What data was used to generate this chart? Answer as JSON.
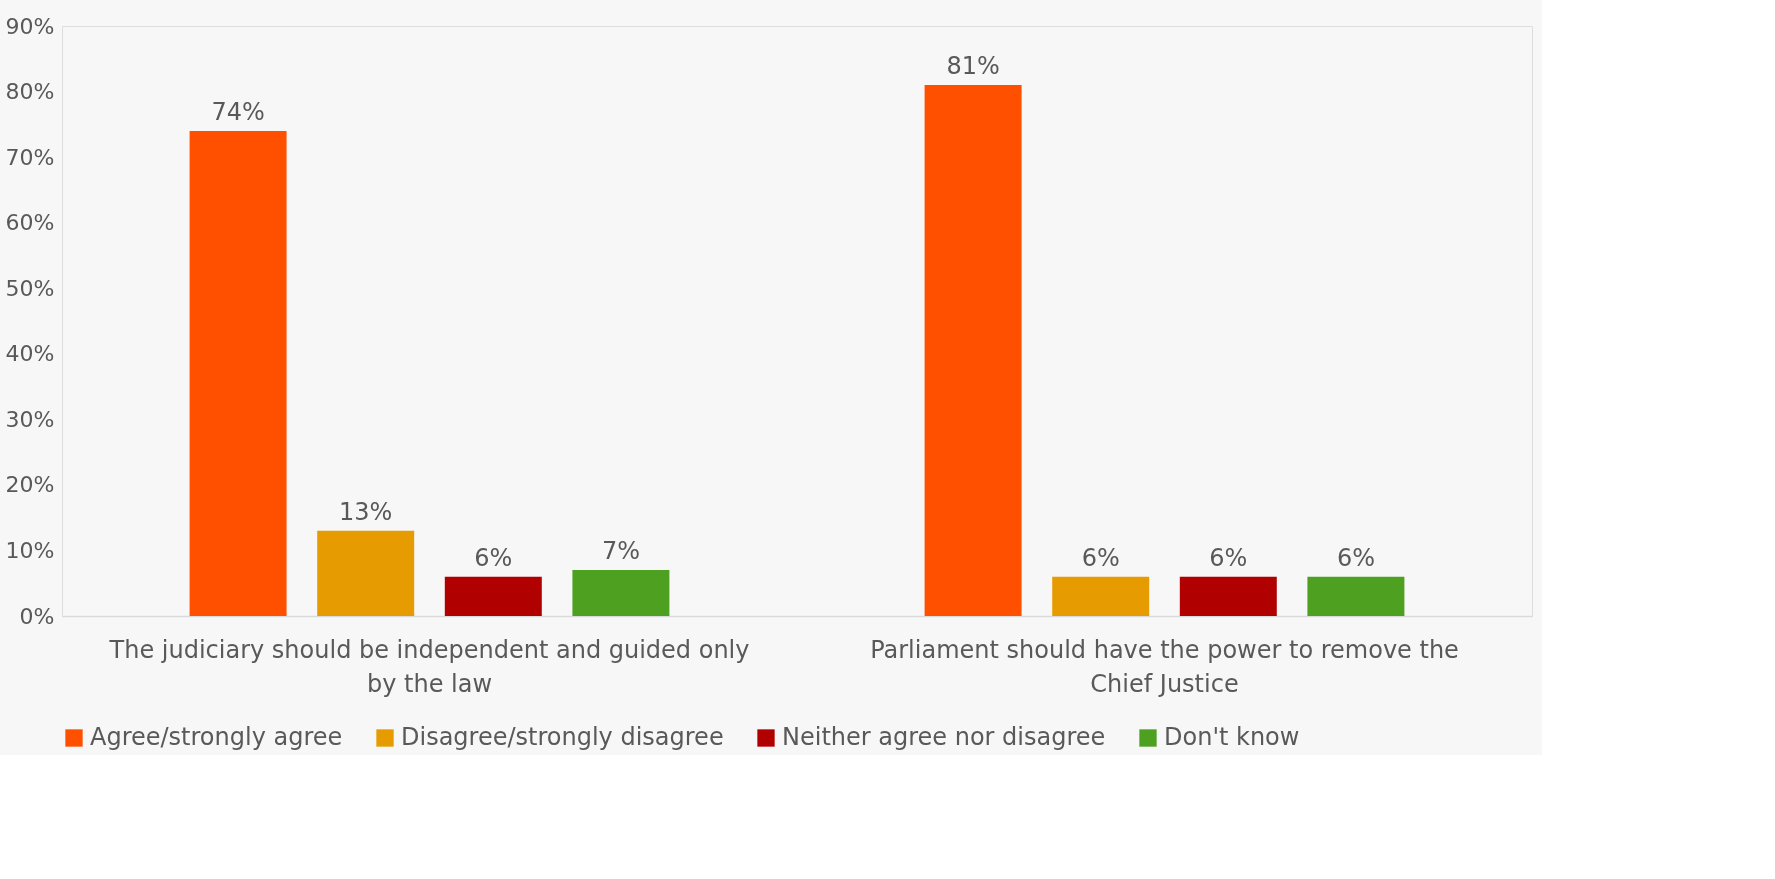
{
  "chart_data": {
    "type": "bar",
    "categories": [
      "The judiciary should be independent and guided only by the law",
      "Parliament should have the power to  remove the Chief Justice"
    ],
    "series": [
      {
        "name": "Agree/strongly agree",
        "color": "#ff5000",
        "values": [
          74,
          81
        ],
        "value_labels": [
          "74%",
          "81%"
        ]
      },
      {
        "name": "Disagree/strongly disagree",
        "color": "#e69b00",
        "values": [
          13,
          6
        ],
        "value_labels": [
          "13%",
          "6%"
        ]
      },
      {
        "name": "Neither agree nor disagree",
        "color": "#b00000",
        "values": [
          6,
          6
        ],
        "value_labels": [
          "6%",
          "6%"
        ]
      },
      {
        "name": "Don't know",
        "color": "#4ea021",
        "values": [
          7,
          6
        ],
        "value_labels": [
          "7%",
          "6%"
        ]
      }
    ],
    "ylim": [
      0,
      90
    ],
    "yticks": [
      {
        "value": 0,
        "label": "0%"
      },
      {
        "value": 10,
        "label": "10%"
      },
      {
        "value": 20,
        "label": "20%"
      },
      {
        "value": 30,
        "label": "30%"
      },
      {
        "value": 40,
        "label": "40%"
      },
      {
        "value": 50,
        "label": "50%"
      },
      {
        "value": 60,
        "label": "60%"
      },
      {
        "value": 70,
        "label": "70%"
      },
      {
        "value": 80,
        "label": "80%"
      },
      {
        "value": 90,
        "label": "90%"
      }
    ],
    "grid": false,
    "legend": "bottom"
  }
}
